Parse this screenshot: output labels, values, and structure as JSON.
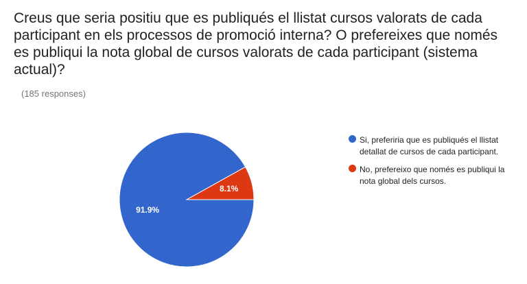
{
  "question": "Creus que seria positiu que es publiqués el llistat cursos valorats de cada participant en els processos de promoció interna? O prefereixes que només es publiqui la nota global de cursos valorats de cada participant (sistema actual)?",
  "responses": "(185 responses)",
  "chart_data": {
    "type": "pie",
    "title": "",
    "slices": [
      {
        "label": "Si, preferiria que es publiqués el llistat detallat de cursos de cada participant.",
        "value": 91.9,
        "display": "91.9%",
        "color": "#3366cc",
        "label_color": "#ffffff"
      },
      {
        "label": "No, prefereixo que només es publiqui la nota global dels cursos.",
        "value": 8.1,
        "display": "8.1%",
        "color": "#dc3912",
        "label_color": "#ffffff"
      }
    ],
    "legend_position": "right"
  }
}
